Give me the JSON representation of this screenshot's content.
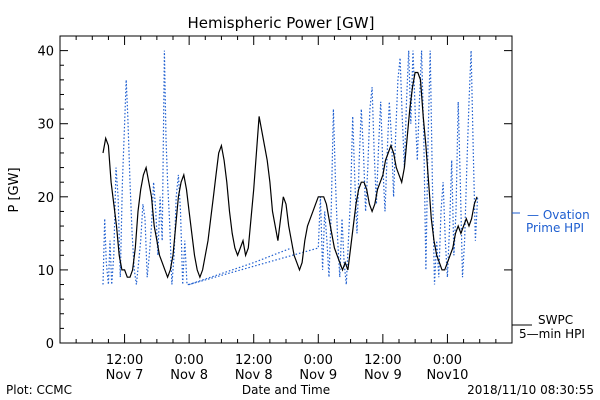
{
  "chart_data": {
    "type": "line",
    "title": "Hemispheric Power [GW]",
    "ylabel": "P [GW]",
    "xlabel": "Date and Time",
    "ylim": [
      0,
      42
    ],
    "yticks": [
      0,
      10,
      20,
      30,
      40
    ],
    "xlim": [
      0,
      84
    ],
    "xunit": "hours since 2018-11-06 00:00",
    "xticks": [
      {
        "x": 12,
        "line1": "12:00",
        "line2": "Nov 7"
      },
      {
        "x": 24,
        "line1": "0:00",
        "line2": "Nov 8"
      },
      {
        "x": 36,
        "line1": "12:00",
        "line2": "Nov 8"
      },
      {
        "x": 48,
        "line1": "0:00",
        "line2": "Nov 9"
      },
      {
        "x": 60,
        "line1": "12:00",
        "line2": "Nov 9"
      },
      {
        "x": 72,
        "line1": "0:00",
        "line2": "Nov10"
      }
    ],
    "grid": false,
    "series": [
      {
        "name": "SWPC 5-min HPI",
        "color": "#000000",
        "style": "solid",
        "points": [
          [
            8,
            26
          ],
          [
            8.5,
            28
          ],
          [
            9,
            27
          ],
          [
            9.5,
            22
          ],
          [
            10,
            19
          ],
          [
            10.5,
            16
          ],
          [
            11,
            12
          ],
          [
            11.5,
            10
          ],
          [
            12,
            10
          ],
          [
            12.5,
            9
          ],
          [
            13,
            9
          ],
          [
            13.5,
            10
          ],
          [
            14,
            13
          ],
          [
            14.5,
            18
          ],
          [
            15,
            21
          ],
          [
            15.5,
            23
          ],
          [
            16,
            24
          ],
          [
            16.5,
            22
          ],
          [
            17,
            20
          ],
          [
            17.5,
            16
          ],
          [
            18,
            14
          ],
          [
            18.5,
            12
          ],
          [
            19,
            11
          ],
          [
            19.5,
            10
          ],
          [
            20,
            9
          ],
          [
            20.5,
            10
          ],
          [
            21,
            12
          ],
          [
            21.5,
            16
          ],
          [
            22,
            20
          ],
          [
            22.5,
            22
          ],
          [
            23,
            23
          ],
          [
            23.5,
            21
          ],
          [
            24,
            18
          ],
          [
            24.5,
            15
          ],
          [
            25,
            12
          ],
          [
            25.5,
            10
          ],
          [
            26,
            9
          ],
          [
            26.5,
            10
          ],
          [
            27,
            12
          ],
          [
            27.5,
            14
          ],
          [
            28,
            17
          ],
          [
            28.5,
            20
          ],
          [
            29,
            23
          ],
          [
            29.5,
            26
          ],
          [
            30,
            27
          ],
          [
            30.5,
            25
          ],
          [
            31,
            22
          ],
          [
            31.5,
            18
          ],
          [
            32,
            15
          ],
          [
            32.5,
            13
          ],
          [
            33,
            12
          ],
          [
            33.5,
            13
          ],
          [
            34,
            14
          ],
          [
            34.5,
            12
          ],
          [
            35,
            13
          ],
          [
            35.5,
            17
          ],
          [
            36,
            21
          ],
          [
            36.5,
            26
          ],
          [
            37,
            31
          ],
          [
            37.5,
            29
          ],
          [
            38,
            27
          ],
          [
            38.5,
            25
          ],
          [
            39,
            22
          ],
          [
            39.5,
            18
          ],
          [
            40,
            16
          ],
          [
            40.5,
            14
          ],
          [
            41,
            17
          ],
          [
            41.5,
            20
          ],
          [
            42,
            19
          ],
          [
            42.5,
            16
          ],
          [
            43,
            14
          ],
          [
            43.5,
            12
          ],
          [
            44,
            11
          ],
          [
            44.5,
            10
          ],
          [
            45,
            11
          ],
          [
            45.5,
            14
          ],
          [
            46,
            16
          ],
          [
            46.5,
            17
          ],
          [
            47,
            18
          ],
          [
            47.5,
            19
          ],
          [
            48,
            20
          ],
          [
            48.5,
            20
          ],
          [
            49,
            20
          ],
          [
            49.5,
            19
          ],
          [
            50,
            17
          ],
          [
            50.5,
            15
          ],
          [
            51,
            13
          ],
          [
            51.5,
            12
          ],
          [
            52,
            11
          ],
          [
            52.5,
            10
          ],
          [
            53,
            11
          ],
          [
            53.5,
            10
          ],
          [
            54,
            13
          ],
          [
            54.5,
            16
          ],
          [
            55,
            19
          ],
          [
            55.5,
            21
          ],
          [
            56,
            22
          ],
          [
            56.5,
            22
          ],
          [
            57,
            21
          ],
          [
            57.5,
            19
          ],
          [
            58,
            18
          ],
          [
            58.5,
            19
          ],
          [
            59,
            21
          ],
          [
            59.5,
            22
          ],
          [
            60,
            23
          ],
          [
            60.5,
            25
          ],
          [
            61,
            26
          ],
          [
            61.5,
            27
          ],
          [
            62,
            26
          ],
          [
            62.5,
            24
          ],
          [
            63,
            23
          ],
          [
            63.5,
            22
          ],
          [
            64,
            24
          ],
          [
            64.5,
            28
          ],
          [
            65,
            32
          ],
          [
            65.5,
            35
          ],
          [
            66,
            37
          ],
          [
            66.5,
            37
          ],
          [
            67,
            36
          ],
          [
            67.5,
            31
          ],
          [
            68,
            27
          ],
          [
            68.5,
            22
          ],
          [
            69,
            17
          ],
          [
            69.5,
            14
          ],
          [
            70,
            12
          ],
          [
            70.5,
            11
          ],
          [
            71,
            10
          ],
          [
            71.5,
            10
          ],
          [
            72,
            11
          ],
          [
            72.5,
            12
          ],
          [
            73,
            13
          ],
          [
            73.5,
            15
          ],
          [
            74,
            16
          ],
          [
            74.5,
            15
          ],
          [
            75,
            16
          ],
          [
            75.5,
            17
          ],
          [
            76,
            16
          ],
          [
            76.5,
            17
          ],
          [
            77,
            19
          ],
          [
            77.5,
            20
          ]
        ]
      },
      {
        "name": "Ovation Prime HPI",
        "color": "#1f5fd0",
        "style": "dotted",
        "points": [
          [
            8,
            8
          ],
          [
            8.3,
            17
          ],
          [
            8.6,
            11
          ],
          [
            9,
            8
          ],
          [
            9.3,
            14
          ],
          [
            9.6,
            8
          ],
          [
            10,
            12
          ],
          [
            10.4,
            24
          ],
          [
            10.8,
            20
          ],
          [
            11.2,
            9
          ],
          [
            11.6,
            22
          ],
          [
            12,
            30
          ],
          [
            12.3,
            36
          ],
          [
            12.6,
            31
          ],
          [
            13,
            22
          ],
          [
            13.4,
            15
          ],
          [
            13.8,
            10
          ],
          [
            14.2,
            8
          ],
          [
            14.6,
            11
          ],
          [
            15,
            14
          ],
          [
            15.4,
            19
          ],
          [
            15.8,
            17
          ],
          [
            16.2,
            9
          ],
          [
            16.6,
            12
          ],
          [
            17,
            16
          ],
          [
            17.4,
            22
          ],
          [
            17.8,
            18
          ],
          [
            18.2,
            12
          ],
          [
            18.6,
            20
          ],
          [
            19,
            14
          ],
          [
            19.4,
            40
          ],
          [
            19.7,
            28
          ],
          [
            20,
            22
          ],
          [
            20.4,
            16
          ],
          [
            20.8,
            8
          ],
          [
            21.2,
            12
          ],
          [
            21.6,
            20
          ],
          [
            22,
            23
          ],
          [
            22.4,
            18
          ],
          [
            22.8,
            8
          ],
          [
            23.2,
            14
          ],
          [
            23.6,
            8
          ],
          [
            24,
            8
          ],
          [
            48,
            13
          ],
          [
            48.4,
            20
          ],
          [
            48.8,
            10
          ],
          [
            49.2,
            18
          ],
          [
            49.6,
            14
          ],
          [
            50,
            9
          ],
          [
            50.4,
            18
          ],
          [
            50.8,
            32
          ],
          [
            51.2,
            22
          ],
          [
            51.6,
            14
          ],
          [
            52,
            9
          ],
          [
            52.4,
            17
          ],
          [
            52.8,
            11
          ],
          [
            53.2,
            8
          ],
          [
            53.6,
            14
          ],
          [
            54,
            20
          ],
          [
            54.4,
            31
          ],
          [
            54.8,
            22
          ],
          [
            55.2,
            15
          ],
          [
            55.6,
            25
          ],
          [
            56,
            32
          ],
          [
            56.4,
            26
          ],
          [
            56.8,
            18
          ],
          [
            57.2,
            24
          ],
          [
            57.6,
            32
          ],
          [
            58,
            35
          ],
          [
            58.4,
            26
          ],
          [
            58.8,
            19
          ],
          [
            59.2,
            27
          ],
          [
            59.6,
            33
          ],
          [
            60,
            24
          ],
          [
            60.4,
            18
          ],
          [
            60.8,
            26
          ],
          [
            61.2,
            33
          ],
          [
            61.6,
            28
          ],
          [
            62,
            20
          ],
          [
            62.4,
            29
          ],
          [
            62.8,
            36
          ],
          [
            63.2,
            39
          ],
          [
            63.6,
            31
          ],
          [
            64,
            24
          ],
          [
            64.4,
            33
          ],
          [
            64.8,
            40
          ],
          [
            65.2,
            30
          ],
          [
            65.6,
            40
          ],
          [
            66,
            32
          ],
          [
            66.4,
            25
          ],
          [
            66.8,
            33
          ],
          [
            67.2,
            40
          ],
          [
            67.6,
            28
          ],
          [
            68,
            10
          ],
          [
            68.4,
            28
          ],
          [
            68.8,
            40
          ],
          [
            69.2,
            22
          ],
          [
            69.6,
            8
          ],
          [
            70,
            14
          ],
          [
            70.4,
            9
          ],
          [
            70.8,
            18
          ],
          [
            71.2,
            22
          ],
          [
            71.6,
            14
          ],
          [
            72,
            9
          ],
          [
            72.4,
            16
          ],
          [
            72.8,
            25
          ],
          [
            73.2,
            12
          ],
          [
            73.6,
            18
          ],
          [
            74,
            33
          ],
          [
            74.4,
            22
          ],
          [
            74.8,
            9
          ],
          [
            75.2,
            14
          ],
          [
            75.6,
            24
          ],
          [
            76,
            33
          ],
          [
            76.4,
            40
          ],
          [
            76.8,
            26
          ],
          [
            77.2,
            14
          ],
          [
            77.6,
            20
          ]
        ]
      }
    ],
    "ovation_gap_bridge": [
      [
        24,
        8
      ],
      [
        36,
        11
      ],
      [
        43,
        13
      ]
    ]
  },
  "legend": {
    "ovation": "— Ovation",
    "ovation2": "Prime HPI",
    "swpc": "SWPC",
    "swpc2": "5—min HPI"
  },
  "footer": {
    "left": "Plot: CCMC",
    "center": "Date and Time",
    "right": "2018/11/10 08:30:55"
  },
  "colors": {
    "black": "#000000",
    "ovation": "#1f5fd0"
  }
}
